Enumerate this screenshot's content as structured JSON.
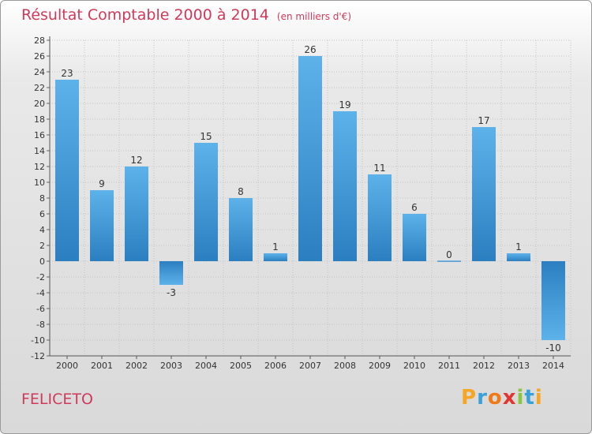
{
  "title": {
    "main": "Résultat Comptable 2000 à 2014",
    "unit": "(en milliers d'€)"
  },
  "city": "FELICETO",
  "logo": [
    "P",
    "r",
    "o",
    "x",
    "i",
    "t",
    "i"
  ],
  "colors": {
    "bar_light": "#5aaee8",
    "bar_dark": "#2a7fc0",
    "title": "#cf3a5b",
    "grid": "#bdbdbd"
  },
  "chart_data": {
    "type": "bar",
    "title": "Résultat Comptable 2000 à 2014",
    "ylabel": "en milliers d'€",
    "xlabel": "",
    "categories": [
      "2000",
      "2001",
      "2002",
      "2003",
      "2004",
      "2005",
      "2006",
      "2007",
      "2008",
      "2009",
      "2010",
      "2011",
      "2012",
      "2013",
      "2014"
    ],
    "values": [
      23,
      9,
      12,
      -3,
      15,
      8,
      1,
      26,
      19,
      11,
      6,
      0,
      17,
      1,
      -10
    ],
    "ylim": [
      -12,
      28
    ],
    "yticks": [
      -12,
      -10,
      -8,
      -6,
      -4,
      -2,
      0,
      2,
      4,
      6,
      8,
      10,
      12,
      14,
      16,
      18,
      20,
      22,
      24,
      26,
      28
    ],
    "grid": true
  }
}
